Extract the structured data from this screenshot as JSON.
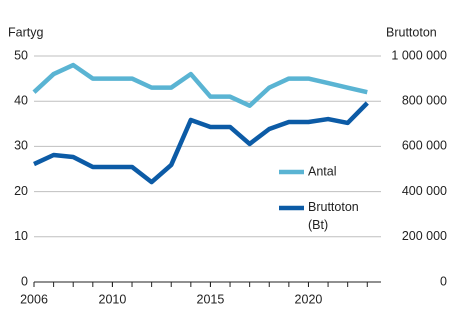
{
  "chart_data": {
    "type": "line",
    "y_label": "Fartyg",
    "y2_label": "Bruttoton",
    "x": [
      2006,
      2007,
      2008,
      2009,
      2010,
      2011,
      2012,
      2013,
      2014,
      2015,
      2016,
      2017,
      2018,
      2019,
      2020,
      2021,
      2022,
      2023
    ],
    "series": [
      {
        "name": "Antal",
        "color": "#5ab4d3",
        "values": [
          42,
          46,
          48,
          45,
          45,
          45,
          43,
          43,
          46,
          41,
          41,
          39,
          43,
          45,
          45,
          44,
          43,
          42
        ]
      },
      {
        "name": "Bruttoton (Bt)",
        "color": "#0c5ba6",
        "axis": "y2",
        "values": [
          522000,
          562000,
          553000,
          509000,
          509000,
          509000,
          442000,
          518000,
          717000,
          686000,
          686000,
          611000,
          677000,
          708000,
          708000,
          721000,
          704000,
          792000
        ]
      }
    ],
    "xlim": [
      2006,
      2023.7
    ],
    "xticks": [
      2006,
      2010,
      2015,
      2020
    ],
    "ylim": [
      0,
      50
    ],
    "yticks": [
      0,
      10,
      20,
      30,
      40,
      50
    ],
    "y2lim": [
      0,
      1000000
    ],
    "y2ticks": [
      0,
      {
        "value": 200000,
        "label": "200 000"
      },
      {
        "value": 400000,
        "label": "400 000"
      },
      {
        "value": 600000,
        "label": "600 000"
      },
      {
        "value": 800000,
        "label": "800 000"
      },
      {
        "value": 1000000,
        "label": "1 000 000"
      }
    ],
    "grid": true
  }
}
